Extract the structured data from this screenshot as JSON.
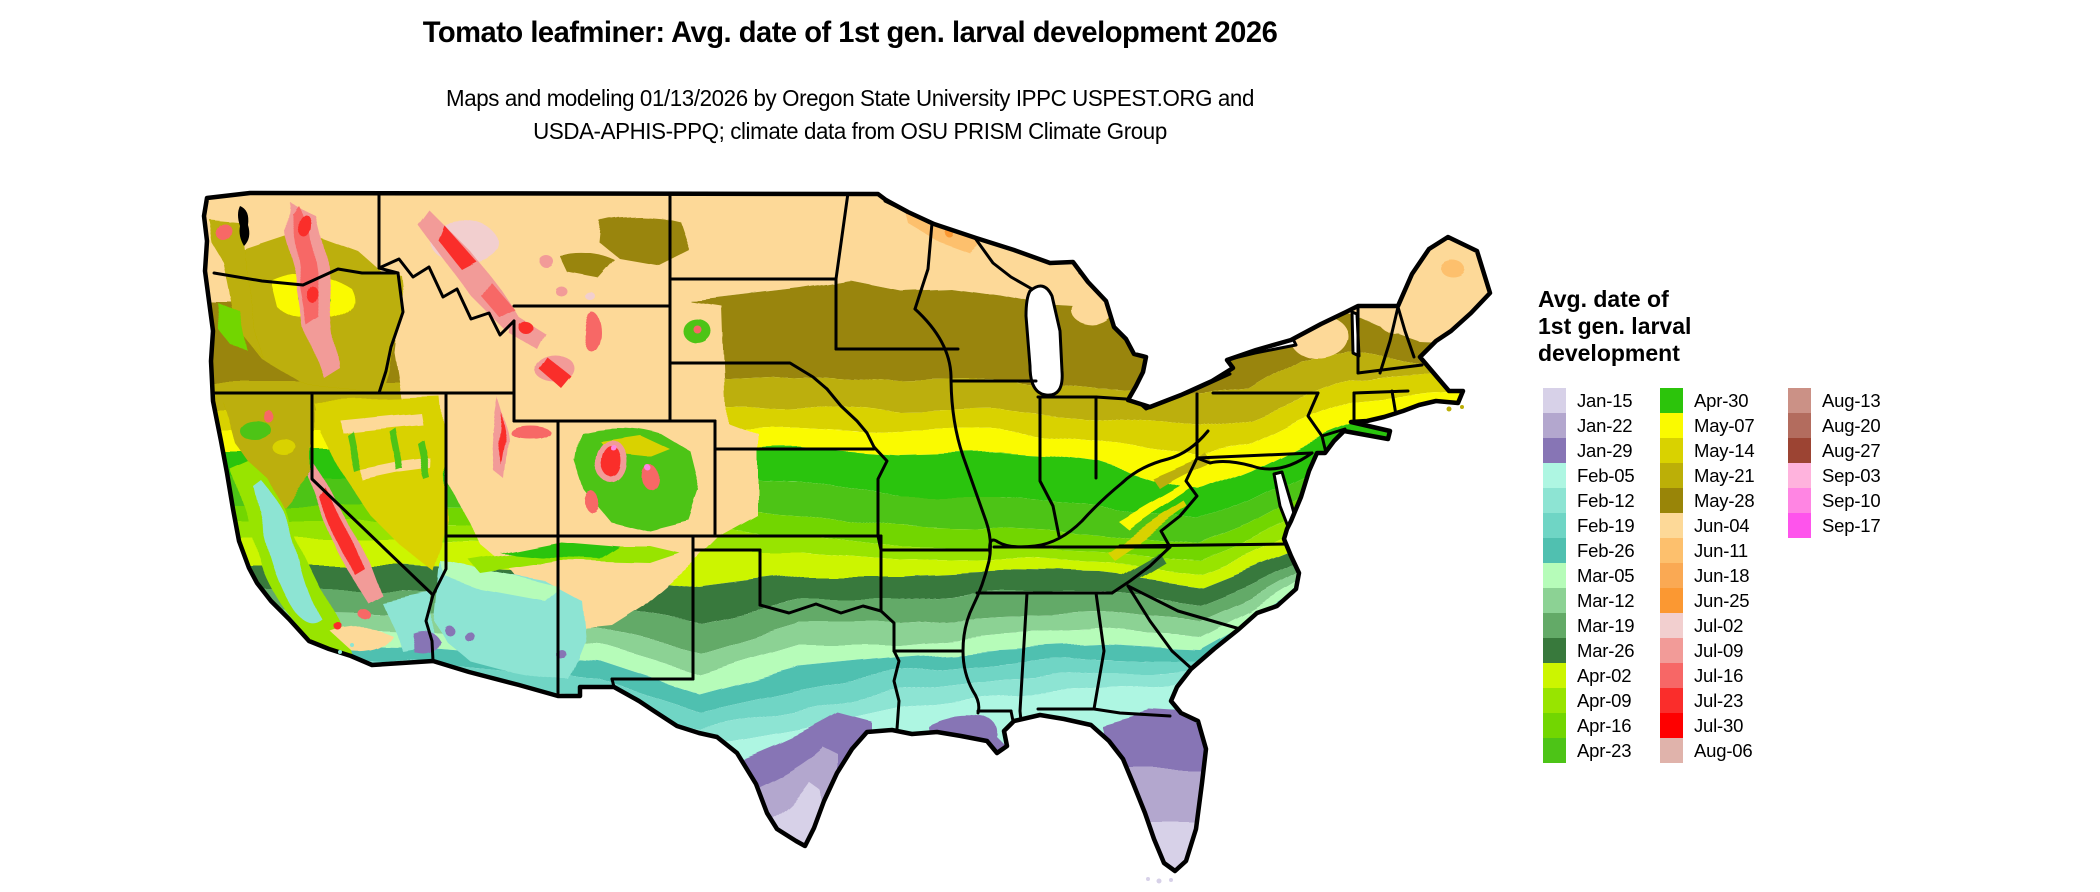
{
  "header": {
    "title": "Tomato leafminer: Avg. date of 1st gen. larval development 2026",
    "subtitle_line1": "Maps and modeling 01/13/2026 by Oregon State University IPPC USPEST.ORG and",
    "subtitle_line2": "USDA-APHIS-PPQ; climate data from OSU PRISM Climate Group"
  },
  "legend": {
    "title_lines": [
      "Avg. date of",
      "1st gen. larval",
      "development"
    ],
    "columns": [
      [
        {
          "label": "Jan-15",
          "color": "#d7d1e8"
        },
        {
          "label": "Jan-22",
          "color": "#b3a7ce"
        },
        {
          "label": "Jan-29",
          "color": "#8775b5"
        },
        {
          "label": "Feb-05",
          "color": "#aef6e2"
        },
        {
          "label": "Feb-12",
          "color": "#8de4d3"
        },
        {
          "label": "Feb-19",
          "color": "#6fd5c5"
        },
        {
          "label": "Feb-26",
          "color": "#50c0b0"
        },
        {
          "label": "Mar-05",
          "color": "#b6fcb9"
        },
        {
          "label": "Mar-12",
          "color": "#8cd294"
        },
        {
          "label": "Mar-19",
          "color": "#63aa67"
        },
        {
          "label": "Mar-26",
          "color": "#38793c"
        },
        {
          "label": "Apr-02",
          "color": "#ccf500"
        },
        {
          "label": "Apr-09",
          "color": "#98e400"
        },
        {
          "label": "Apr-16",
          "color": "#72d601"
        },
        {
          "label": "Apr-23",
          "color": "#4dc417"
        }
      ],
      [
        {
          "label": "Apr-30",
          "color": "#2cc40b"
        },
        {
          "label": "May-07",
          "color": "#fafa00"
        },
        {
          "label": "May-14",
          "color": "#d9d200"
        },
        {
          "label": "May-21",
          "color": "#bcaf07"
        },
        {
          "label": "May-28",
          "color": "#998508"
        },
        {
          "label": "Jun-04",
          "color": "#fdd998"
        },
        {
          "label": "Jun-11",
          "color": "#fdc06d"
        },
        {
          "label": "Jun-18",
          "color": "#faa953"
        },
        {
          "label": "Jun-25",
          "color": "#fb9832"
        },
        {
          "label": "Jul-02",
          "color": "#f2cfcf"
        },
        {
          "label": "Jul-09",
          "color": "#f29b98"
        },
        {
          "label": "Jul-16",
          "color": "#f76766"
        },
        {
          "label": "Jul-23",
          "color": "#fa2d2b"
        },
        {
          "label": "Jul-30",
          "color": "#fe0000"
        },
        {
          "label": "Aug-06",
          "color": "#e0b3ab"
        }
      ],
      [
        {
          "label": "Aug-13",
          "color": "#cb9186"
        },
        {
          "label": "Aug-20",
          "color": "#b36c5e"
        },
        {
          "label": "Aug-27",
          "color": "#9c4433"
        },
        {
          "label": "Sep-03",
          "color": "#ffb3dd"
        },
        {
          "label": "Sep-10",
          "color": "#ff85e3"
        },
        {
          "label": "Sep-17",
          "color": "#fe54ec"
        }
      ]
    ]
  },
  "map": {
    "border_color": "#000000",
    "water_color": "#ffffff"
  },
  "chart_data": {
    "type": "heatmap",
    "title": "Tomato leafminer: Avg. date of 1st gen. larval development 2026",
    "legend_title": "Avg. date of 1st gen. larval development",
    "legend_position": "right",
    "classes": [
      {
        "label": "Jan-15",
        "color": "#d7d1e8"
      },
      {
        "label": "Jan-22",
        "color": "#b3a7ce"
      },
      {
        "label": "Jan-29",
        "color": "#8775b5"
      },
      {
        "label": "Feb-05",
        "color": "#aef6e2"
      },
      {
        "label": "Feb-12",
        "color": "#8de4d3"
      },
      {
        "label": "Feb-19",
        "color": "#6fd5c5"
      },
      {
        "label": "Feb-26",
        "color": "#50c0b0"
      },
      {
        "label": "Mar-05",
        "color": "#b6fcb9"
      },
      {
        "label": "Mar-12",
        "color": "#8cd294"
      },
      {
        "label": "Mar-19",
        "color": "#63aa67"
      },
      {
        "label": "Mar-26",
        "color": "#38793c"
      },
      {
        "label": "Apr-02",
        "color": "#ccf500"
      },
      {
        "label": "Apr-09",
        "color": "#98e400"
      },
      {
        "label": "Apr-16",
        "color": "#72d601"
      },
      {
        "label": "Apr-23",
        "color": "#4dc417"
      },
      {
        "label": "Apr-30",
        "color": "#2cc40b"
      },
      {
        "label": "May-07",
        "color": "#fafa00"
      },
      {
        "label": "May-14",
        "color": "#d9d200"
      },
      {
        "label": "May-21",
        "color": "#bcaf07"
      },
      {
        "label": "May-28",
        "color": "#998508"
      },
      {
        "label": "Jun-04",
        "color": "#fdd998"
      },
      {
        "label": "Jun-11",
        "color": "#fdc06d"
      },
      {
        "label": "Jun-18",
        "color": "#faa953"
      },
      {
        "label": "Jun-25",
        "color": "#fb9832"
      },
      {
        "label": "Jul-02",
        "color": "#f2cfcf"
      },
      {
        "label": "Jul-09",
        "color": "#f29b98"
      },
      {
        "label": "Jul-16",
        "color": "#f76766"
      },
      {
        "label": "Jul-23",
        "color": "#fa2d2b"
      },
      {
        "label": "Jul-30",
        "color": "#fe0000"
      },
      {
        "label": "Aug-06",
        "color": "#e0b3ab"
      },
      {
        "label": "Aug-13",
        "color": "#cb9186"
      },
      {
        "label": "Aug-20",
        "color": "#b36c5e"
      },
      {
        "label": "Aug-27",
        "color": "#9c4433"
      },
      {
        "label": "Sep-03",
        "color": "#ffb3dd"
      },
      {
        "label": "Sep-10",
        "color": "#ff85e3"
      },
      {
        "label": "Sep-17",
        "color": "#fe54ec"
      }
    ]
  }
}
